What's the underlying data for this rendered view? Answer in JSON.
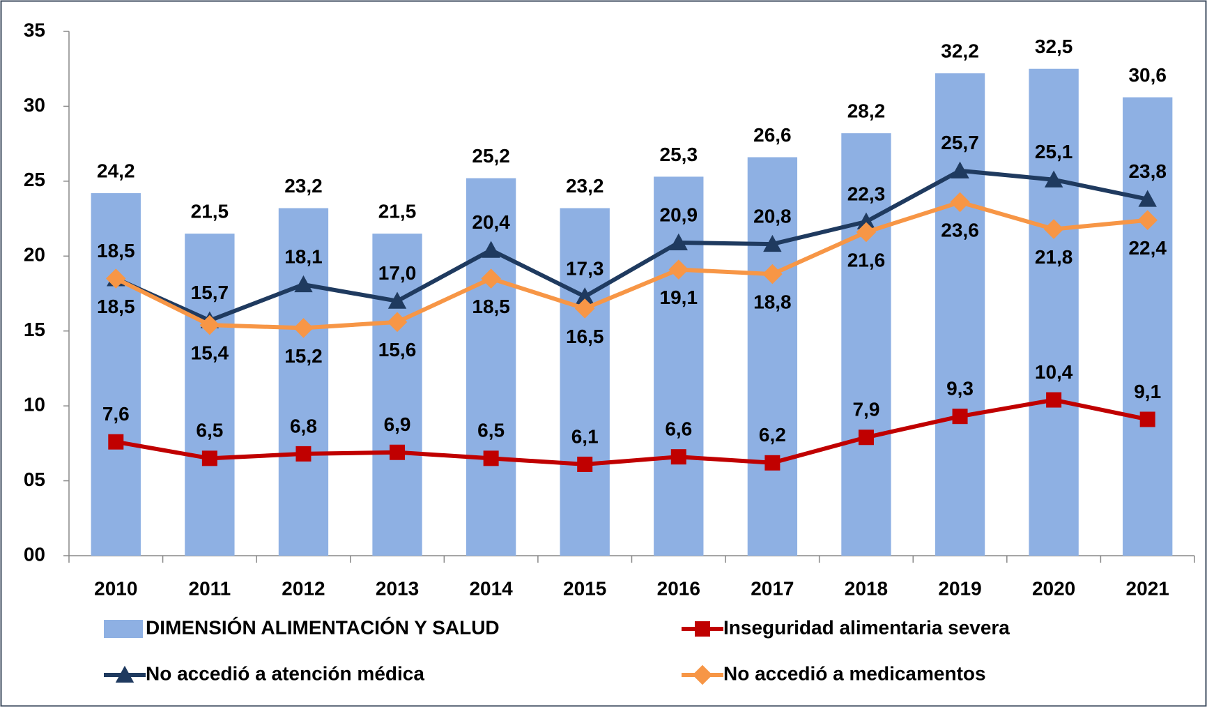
{
  "chart_data": {
    "type": "bar",
    "categories": [
      "2010",
      "2011",
      "2012",
      "2013",
      "2014",
      "2015",
      "2016",
      "2017",
      "2018",
      "2019",
      "2020",
      "2021"
    ],
    "series": [
      {
        "name": "DIMENSIÓN ALIMENTACIÓN Y SALUD",
        "type": "bar",
        "color": "#8eb0e3",
        "values": [
          24.2,
          21.5,
          23.2,
          21.5,
          25.2,
          23.2,
          25.3,
          26.6,
          28.2,
          32.2,
          32.5,
          30.6
        ],
        "value_labels": [
          "24,2",
          "21,5",
          "23,2",
          "21,5",
          "25,2",
          "23,2",
          "25,3",
          "26,6",
          "28,2",
          "32,2",
          "32,5",
          "30,6"
        ]
      },
      {
        "name": "Inseguridad alimentaria severa",
        "type": "line",
        "marker": "square",
        "color": "#c00000",
        "values": [
          7.6,
          6.5,
          6.8,
          6.9,
          6.5,
          6.1,
          6.6,
          6.2,
          7.9,
          9.3,
          10.4,
          9.1
        ],
        "value_labels": [
          "7,6",
          "6,5",
          "6,8",
          "6,9",
          "6,5",
          "6,1",
          "6,6",
          "6,2",
          "7,9",
          "9,3",
          "10,4",
          "9,1"
        ]
      },
      {
        "name": "No accedió a atención médica",
        "type": "line",
        "marker": "triangle",
        "color": "#1f3a5f",
        "values": [
          18.5,
          15.7,
          18.1,
          17.0,
          20.4,
          17.3,
          20.9,
          20.8,
          22.3,
          25.7,
          25.1,
          23.8
        ],
        "value_labels": [
          "18,5",
          "15,7",
          "18,1",
          "17,0",
          "20,4",
          "17,3",
          "20,9",
          "20,8",
          "22,3",
          "25,7",
          "25,1",
          "23,8"
        ]
      },
      {
        "name": "No accedió a medicamentos",
        "type": "line",
        "marker": "diamond",
        "color": "#f79646",
        "values": [
          18.5,
          15.4,
          15.2,
          15.6,
          18.5,
          16.5,
          19.1,
          18.8,
          21.6,
          23.6,
          21.8,
          22.4
        ],
        "value_labels": [
          "18,5",
          "15,4",
          "15,2",
          "15,6",
          "18,5",
          "16,5",
          "19,1",
          "18,8",
          "21,6",
          "23,6",
          "21,8",
          "22,4"
        ]
      }
    ],
    "ylim": [
      0,
      35
    ],
    "yticks": [
      {
        "value": 0,
        "label": "00"
      },
      {
        "value": 5,
        "label": "05"
      },
      10,
      15,
      20,
      25,
      30,
      35
    ],
    "grid": false,
    "legend": "bottom"
  }
}
